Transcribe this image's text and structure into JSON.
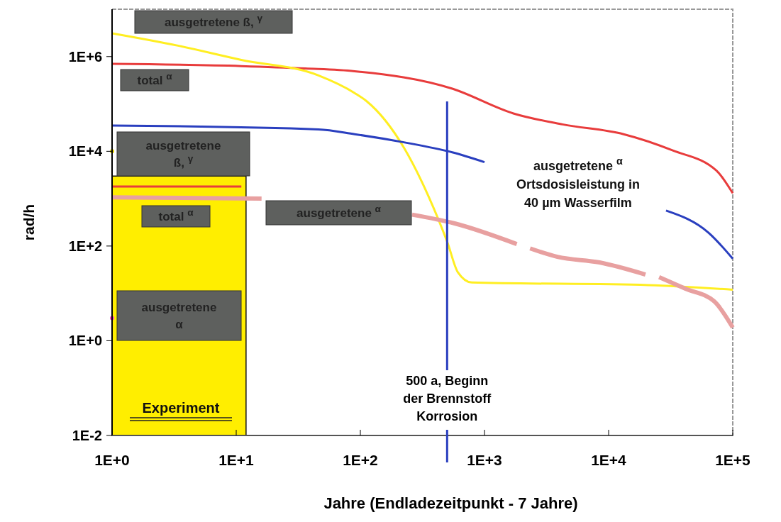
{
  "chart_data": {
    "type": "line",
    "xlabel": "Jahre (Endladezeitpunkt - 7 Jahre)",
    "ylabel": "rad/h",
    "log": "xy",
    "grid": false,
    "xlim": [
      1,
      100000
    ],
    "ylim": [
      0.01,
      10000000
    ],
    "xticks": [
      {
        "value": 1,
        "label": "1E+0"
      },
      {
        "value": 10,
        "label": "1E+1"
      },
      {
        "value": 100,
        "label": "1E+2"
      },
      {
        "value": 1000,
        "label": "1E+3"
      },
      {
        "value": 10000,
        "label": "1E+4"
      },
      {
        "value": 100000,
        "label": "1E+5"
      }
    ],
    "yticks": [
      {
        "value": 0.01,
        "label": "1E-2"
      },
      {
        "value": 1,
        "label": "1E+0"
      },
      {
        "value": 100,
        "label": "1E+2"
      },
      {
        "value": 10000,
        "label": "1E+4"
      },
      {
        "value": 1000000,
        "label": "1E+6"
      }
    ],
    "series": [
      {
        "type": "area",
        "color": "#ffee00",
        "x": [
          1,
          12
        ],
        "values": [
          3000,
          3000
        ]
      },
      {
        "color": "#e83c3c",
        "x": [
          1,
          11,
          36,
          90,
          550,
          1710,
          4250,
          13200,
          32600,
          74000,
          100000
        ],
        "values": [
          700000,
          630000,
          560000,
          490000,
          210000,
          63000,
          37000,
          23000,
          10500,
          3900,
          1300
        ]
      },
      {
        "color": "#ffee22",
        "x": [
          1,
          3.4,
          11,
          46,
          90,
          112,
          224,
          350,
          505,
          610,
          790,
          20800,
          100000
        ],
        "values": [
          3100000,
          1700000,
          850000,
          400000,
          170000,
          115000,
          12000,
          1200,
          115,
          28,
          17,
          15,
          12
        ]
      },
      {
        "color": "#2a3fbf",
        "x": [
          1,
          46,
          90,
          224,
          550,
          1000,
          5000,
          29000,
          64000,
          100000
        ],
        "values": [
          35000,
          29000,
          23000,
          15500,
          9500,
          5900,
          null,
          560,
          190,
          54
        ]
      },
      {
        "color": "#e8a0a0",
        "x": [
          1,
          16,
          60,
          261,
          575,
          1820,
          2000,
          2330,
          3870,
          8450,
          19800,
          22000,
          25500,
          41500,
          70800,
          100000
        ],
        "values": [
          1070,
          1000,
          null,
          460,
          300,
          110,
          null,
          89,
          59,
          45,
          25,
          null,
          22,
          12.6,
          6.8,
          1.9
        ]
      },
      {
        "color": "#e83c3c",
        "x": [
          1,
          11
        ],
        "values": [
          1800,
          1800
        ]
      },
      {
        "type": "scatter",
        "color": "#e8d800",
        "x": [
          1
        ],
        "values": [
          10000
        ]
      },
      {
        "type": "scatter",
        "color": "#ff44cc",
        "x": [
          1
        ],
        "values": [
          3
        ]
      }
    ],
    "ref_lines": [
      {
        "axis": "x",
        "value": 500,
        "label": "500 a, Beginn\nder Brennstoff\nKorrosion",
        "color": "#2a3fbf"
      }
    ],
    "annotations": [
      "ausgetretene ß, $^{γ}$",
      "total $^{α}$",
      "ausgetretene\nß, $^{γ}$",
      "total $^{α}$",
      "ausgetretene $^{α}$",
      "ausgetretene\nα",
      "ausgetretene $^{α}$\nOrtsdosisleistung in\n40 µm Wasserfilm",
      "Experiment"
    ]
  }
}
